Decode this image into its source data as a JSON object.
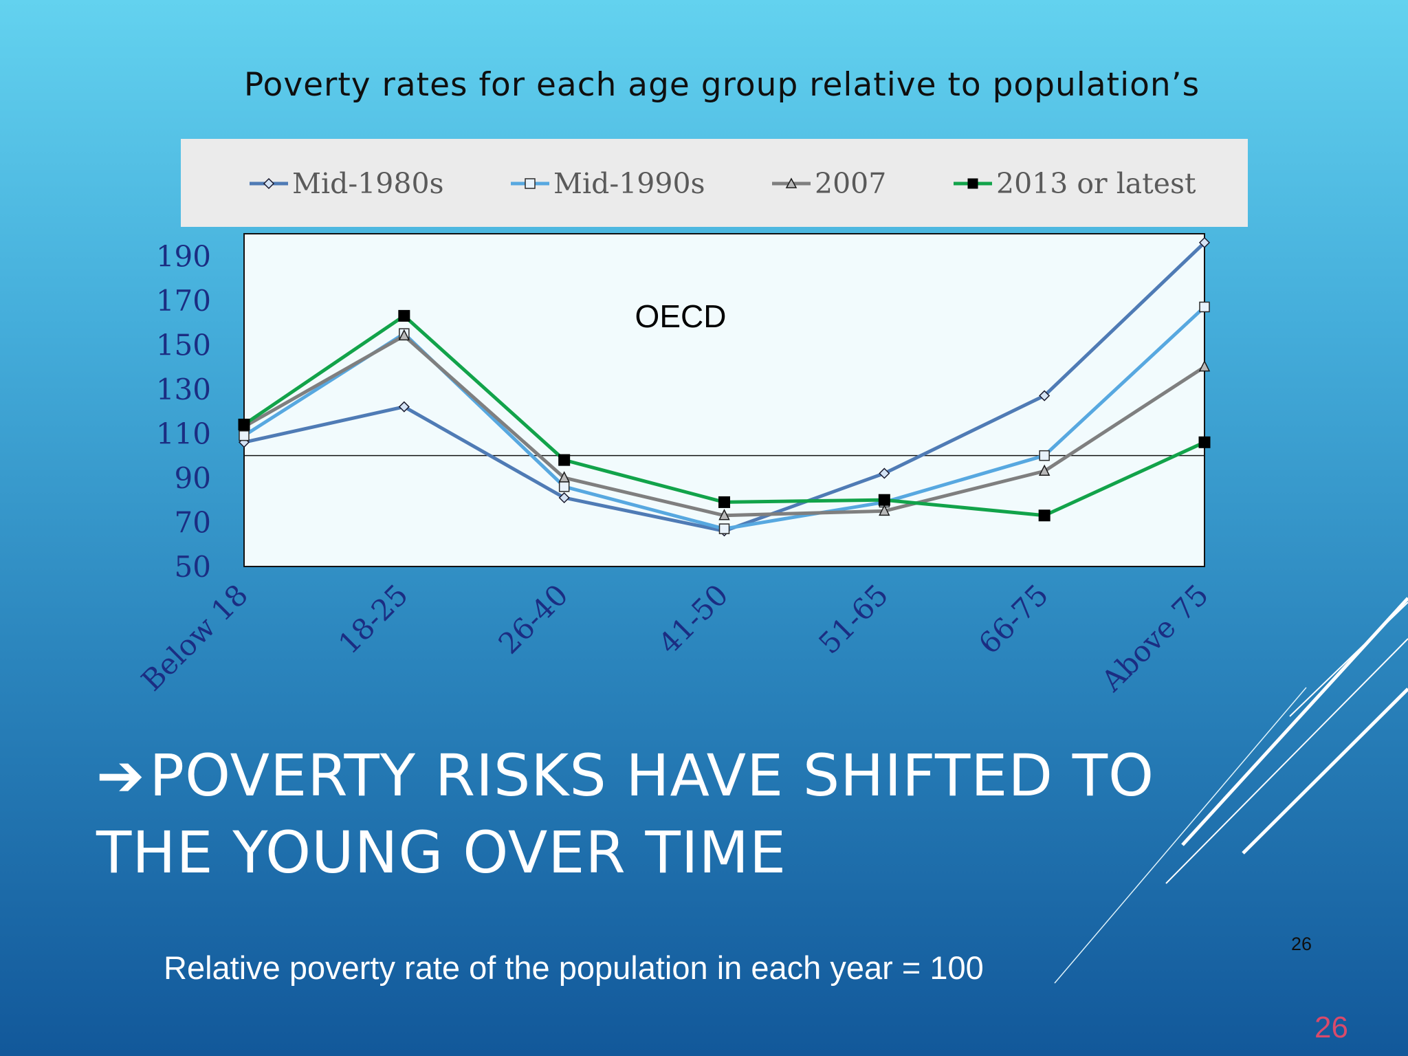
{
  "slide": {
    "chart_title": "Poverty rates for each age group relative to population’s",
    "headline_arrow": "➔",
    "headline": "Poverty risks have shifted to the young over time",
    "note": "Relative poverty rate of the population in each year = 100",
    "slide_number_small": "26",
    "slide_number": "26"
  },
  "colors": {
    "mid1980s": "#4f7bb5",
    "mid1990s": "#57a8e0",
    "y2007": "#7f7f7f",
    "latest": "#12a34a",
    "axis_text": "#1b2d82",
    "plot_bg": "#f2fbfd"
  },
  "chart_data": {
    "type": "line",
    "annotation": "OECD",
    "categories": [
      "Below 18",
      "18-25",
      "26-40",
      "41-50",
      "51-65",
      "66-75",
      "Above 75"
    ],
    "ylim": [
      50,
      200
    ],
    "yticks": [
      50,
      70,
      90,
      110,
      130,
      150,
      170,
      190
    ],
    "reference_line": 100,
    "legend_position": "top",
    "series": [
      {
        "name": "Mid-1980s",
        "marker": "diamond",
        "values": [
          106,
          122,
          81,
          66,
          92,
          127,
          196
        ]
      },
      {
        "name": "Mid-1990s",
        "marker": "square-open",
        "values": [
          109,
          155,
          86,
          67,
          79,
          100,
          167
        ]
      },
      {
        "name": "2007",
        "marker": "triangle",
        "values": [
          113,
          154,
          90,
          73,
          75,
          93,
          140
        ]
      },
      {
        "name": "2013 or latest",
        "marker": "square-filled",
        "values": [
          114,
          163,
          98,
          79,
          80,
          73,
          106
        ]
      }
    ]
  }
}
